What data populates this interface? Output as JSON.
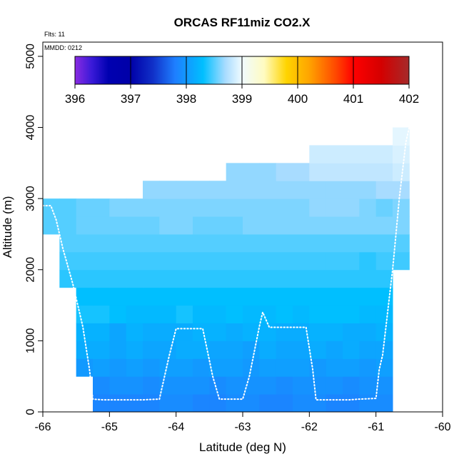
{
  "chart_data": {
    "type": "heatmap",
    "title": "ORCAS RF11miz CO2.X",
    "xlabel": "Latitude (deg N)",
    "ylabel": "Altitude (m)",
    "xlim": [
      -66,
      -60
    ],
    "ylim": [
      0,
      5200
    ],
    "x_ticks": [
      -66,
      -65,
      -64,
      -63,
      -62,
      -61,
      -60
    ],
    "y_ticks": [
      0,
      1000,
      2000,
      3000,
      4000,
      5000
    ],
    "annotations": {
      "flights": "Flts: 11",
      "date": "MMDD: 0212"
    },
    "colorbar": {
      "min": 396,
      "max": 402,
      "ticks": [
        396,
        397,
        398,
        399,
        400,
        401,
        402
      ],
      "stops": [
        {
          "v": 396.0,
          "c": "#8a2be2"
        },
        {
          "v": 396.3,
          "c": "#3a1ad8"
        },
        {
          "v": 396.6,
          "c": "#0000b0"
        },
        {
          "v": 397.0,
          "c": "#0000a8"
        },
        {
          "v": 397.4,
          "c": "#1030c8"
        },
        {
          "v": 397.8,
          "c": "#1e7fff"
        },
        {
          "v": 398.3,
          "c": "#00bfff"
        },
        {
          "v": 398.7,
          "c": "#a8dcff"
        },
        {
          "v": 399.0,
          "c": "#f0fbff"
        },
        {
          "v": 399.4,
          "c": "#fffbc0"
        },
        {
          "v": 399.8,
          "c": "#ffd400"
        },
        {
          "v": 400.2,
          "c": "#ffa500"
        },
        {
          "v": 400.7,
          "c": "#ff4500"
        },
        {
          "v": 401.0,
          "c": "#ff0000"
        },
        {
          "v": 401.5,
          "c": "#d40000"
        },
        {
          "v": 402.0,
          "c": "#a52a2a"
        }
      ]
    },
    "grid_cells": {
      "lat_step": 0.25,
      "alt_step": 250,
      "rows": [
        {
          "alt0": 0,
          "lat0": -65.25,
          "lat1": -60.75,
          "values": [
            397.85,
            397.85,
            397.85,
            397.85,
            397.9,
            397.9,
            397.85,
            397.85,
            397.9,
            397.9,
            397.85,
            397.85,
            397.9,
            397.9,
            397.85,
            397.85,
            397.9,
            397.9
          ]
        },
        {
          "alt0": 250,
          "lat0": -65.25,
          "lat1": -60.75,
          "values": [
            397.9,
            397.95,
            397.95,
            397.9,
            397.95,
            397.95,
            397.95,
            397.9,
            397.95,
            397.95,
            397.95,
            397.9,
            397.95,
            397.95,
            397.95,
            397.9,
            397.95,
            397.95
          ]
        },
        {
          "alt0": 500,
          "lat0": -65.5,
          "lat1": -60.75,
          "values": [
            398.0,
            398.05,
            398.0,
            398.05,
            398.0,
            398.05,
            398.05,
            398.0,
            398.05,
            398.05,
            398.0,
            398.05,
            398.05,
            398.05,
            398.0,
            398.05,
            398.05,
            398.0,
            398.05
          ]
        },
        {
          "alt0": 750,
          "lat0": -65.5,
          "lat1": -60.75,
          "values": [
            398.15,
            398.15,
            398.1,
            398.15,
            398.1,
            398.1,
            398.15,
            398.15,
            398.1,
            398.1,
            398.05,
            398.15,
            398.1,
            398.1,
            398.15,
            398.1,
            398.15,
            398.1,
            398.1
          ]
        },
        {
          "alt0": 1000,
          "lat0": -65.5,
          "lat1": -60.75,
          "values": [
            398.2,
            398.2,
            398.1,
            398.2,
            398.15,
            398.15,
            398.15,
            398.2,
            398.2,
            398.15,
            398.2,
            398.2,
            398.15,
            398.15,
            398.2,
            398.2,
            398.15,
            398.15,
            398.2
          ]
        },
        {
          "alt0": 1250,
          "lat0": -65.5,
          "lat1": -60.75,
          "values": [
            398.35,
            398.35,
            398.3,
            398.25,
            398.25,
            398.25,
            398.35,
            398.25,
            398.25,
            398.3,
            398.25,
            398.25,
            398.3,
            398.25,
            398.3,
            398.3,
            398.3,
            398.25,
            398.25
          ]
        },
        {
          "alt0": 1500,
          "lat0": -65.5,
          "lat1": -60.75,
          "values": [
            398.3,
            398.3,
            398.3,
            398.3,
            398.3,
            398.3,
            398.3,
            398.3,
            398.3,
            398.3,
            398.3,
            398.3,
            398.3,
            398.3,
            398.3,
            398.3,
            398.3,
            398.3,
            398.3
          ]
        },
        {
          "alt0": 1750,
          "lat0": -65.75,
          "lat1": -60.75,
          "values": [
            398.4,
            398.4,
            398.4,
            398.4,
            398.4,
            398.4,
            398.4,
            398.4,
            398.4,
            398.4,
            398.4,
            398.4,
            398.4,
            398.4,
            398.4,
            398.4,
            398.4,
            398.4,
            398.4,
            398.4
          ]
        },
        {
          "alt0": 2000,
          "lat0": -65.75,
          "lat1": -60.5,
          "values": [
            398.45,
            398.45,
            398.45,
            398.45,
            398.45,
            398.45,
            398.45,
            398.45,
            398.45,
            398.45,
            398.45,
            398.45,
            398.45,
            398.45,
            398.45,
            398.45,
            398.45,
            398.45,
            398.4,
            398.45,
            398.45
          ]
        },
        {
          "alt0": 2250,
          "lat0": -65.75,
          "lat1": -60.5,
          "values": [
            398.5,
            398.5,
            398.5,
            398.5,
            398.5,
            398.5,
            398.5,
            398.5,
            398.5,
            398.5,
            398.5,
            398.5,
            398.5,
            398.5,
            398.5,
            398.5,
            398.5,
            398.5,
            398.5,
            398.5,
            398.5
          ]
        },
        {
          "alt0": 2500,
          "lat0": -66.0,
          "lat1": -60.5,
          "values": [
            398.5,
            398.5,
            398.55,
            398.55,
            398.55,
            398.55,
            398.55,
            398.6,
            398.6,
            398.55,
            398.55,
            398.55,
            398.6,
            398.6,
            398.6,
            398.6,
            398.6,
            398.6,
            398.6,
            398.6,
            398.6,
            398.6
          ]
        },
        {
          "alt0": 2750,
          "lat0": -66.0,
          "lat1": -60.5,
          "values": [
            398.5,
            398.5,
            398.55,
            398.55,
            398.6,
            398.6,
            398.6,
            398.6,
            398.6,
            398.6,
            398.6,
            398.6,
            398.6,
            398.6,
            398.6,
            398.6,
            398.65,
            398.65,
            398.65,
            398.6,
            398.55,
            398.6
          ]
        },
        {
          "alt0": 3000,
          "lat0": -64.5,
          "lat1": -60.5,
          "values": [
            398.65,
            398.65,
            398.65,
            398.65,
            398.65,
            398.65,
            398.65,
            398.65,
            398.65,
            398.65,
            398.65,
            398.65,
            398.65,
            398.65,
            398.7,
            398.7
          ]
        },
        {
          "alt0": 3250,
          "lat0": -63.25,
          "lat1": -60.5,
          "values": [
            398.65,
            398.65,
            398.65,
            398.7,
            398.7,
            398.8,
            398.8,
            398.8,
            398.8,
            398.8,
            398.85
          ]
        },
        {
          "alt0": 3500,
          "lat0": -62.0,
          "lat1": -60.5,
          "values": [
            398.85,
            398.85,
            398.85,
            398.85,
            398.85,
            398.9
          ]
        },
        {
          "alt0": 3750,
          "lat0": -60.75,
          "lat1": -60.5,
          "values": [
            398.95
          ]
        }
      ]
    },
    "flight_track": {
      "latitude": [
        -66.0,
        -65.88,
        -65.8,
        -65.7,
        -65.55,
        -65.4,
        -65.3,
        -65.25,
        -65.1,
        -64.8,
        -64.5,
        -64.25,
        -64.1,
        -64.0,
        -63.7,
        -63.6,
        -63.45,
        -63.35,
        -63.0,
        -62.9,
        -62.75,
        -62.7,
        -62.6,
        -62.4,
        -62.15,
        -62.05,
        -61.95,
        -61.9,
        -61.6,
        -61.4,
        -61.25,
        -61.0,
        -60.95,
        -60.9,
        -60.85,
        -60.8,
        -60.75,
        -60.7,
        -60.65,
        -60.6,
        -60.55,
        -60.5
      ],
      "altitude": [
        2900,
        2900,
        2700,
        2300,
        1800,
        1200,
        600,
        180,
        170,
        170,
        170,
        180,
        800,
        1170,
        1170,
        1170,
        500,
        180,
        180,
        500,
        1200,
        1400,
        1190,
        1190,
        1190,
        1190,
        600,
        170,
        170,
        170,
        180,
        190,
        600,
        800,
        1200,
        1600,
        2000,
        2500,
        3000,
        3400,
        3800,
        4000
      ]
    }
  }
}
